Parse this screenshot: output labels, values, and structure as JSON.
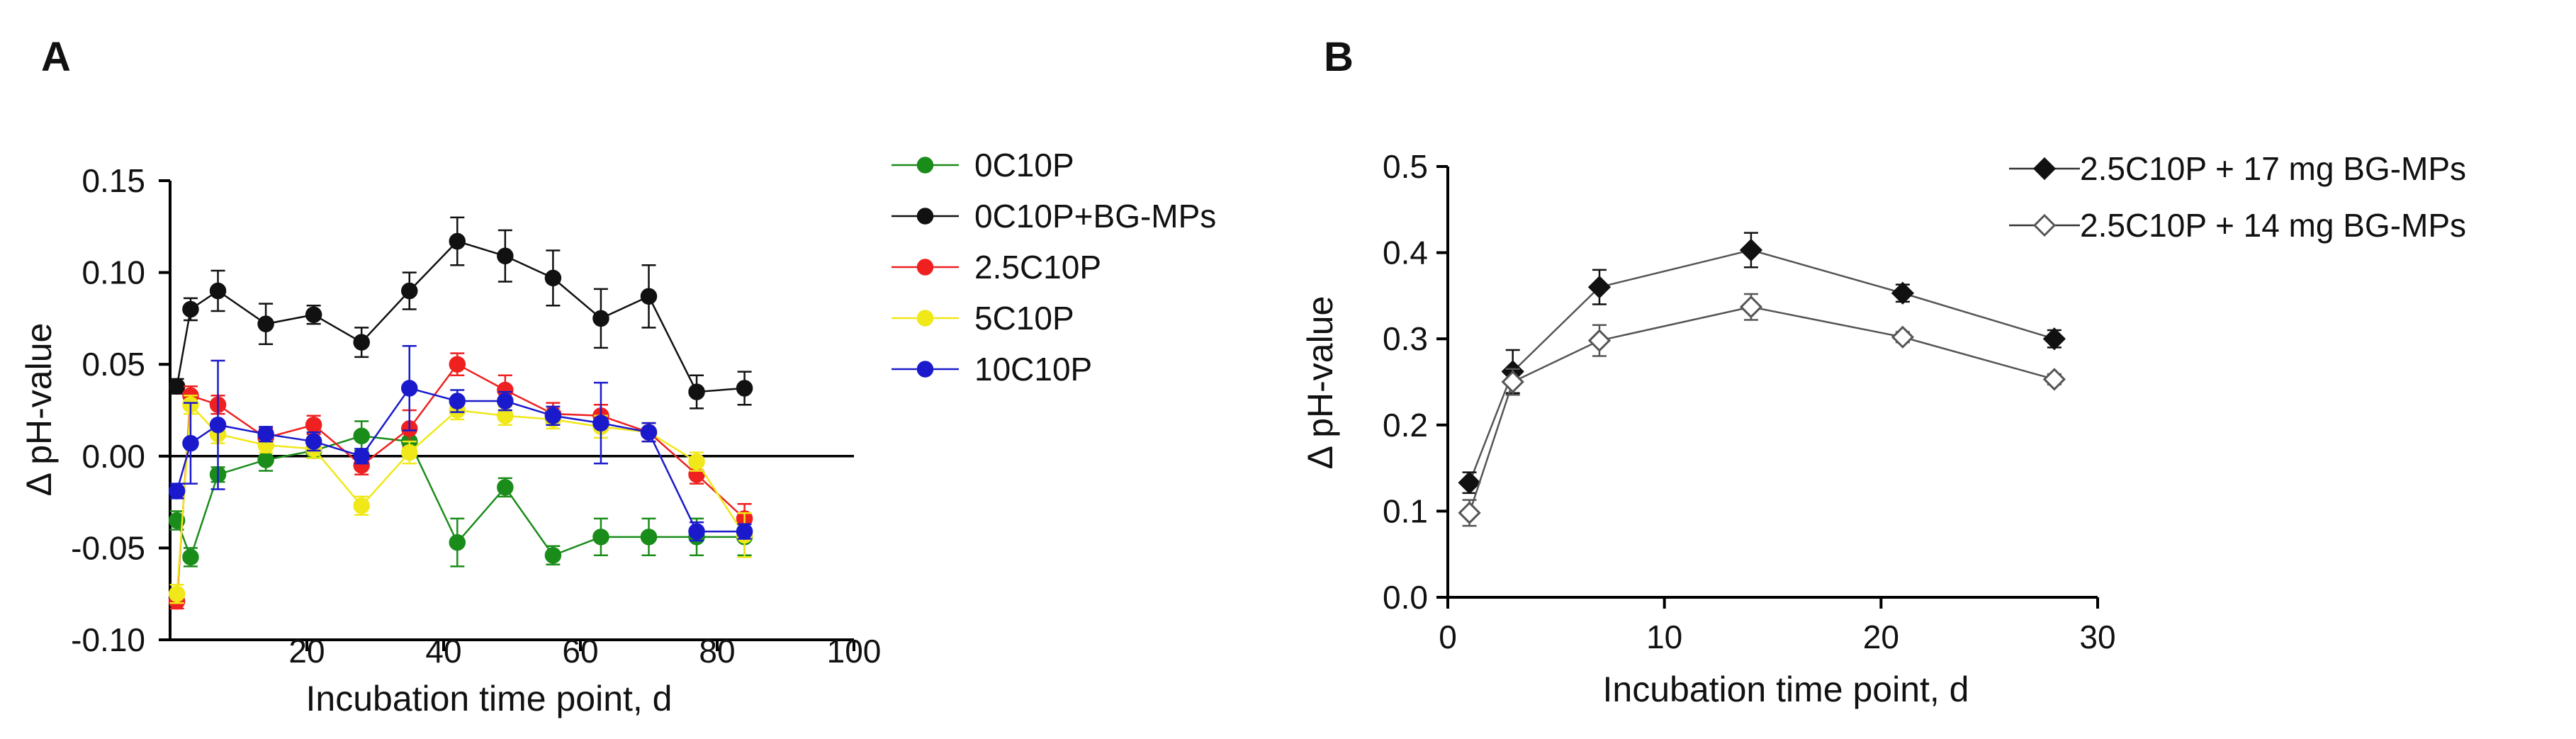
{
  "chart_data": [
    {
      "type": "line",
      "panel_label": "A",
      "xlabel": "Incubation time point, d",
      "ylabel": "Δ pH-value",
      "xlim": [
        0,
        100
      ],
      "ylim": [
        -0.1,
        0.15
      ],
      "xticks": [
        20,
        40,
        60,
        80,
        100
      ],
      "xtick_labels": [
        "20",
        "40",
        "60",
        "80",
        "100"
      ],
      "yticks": [
        -0.1,
        -0.05,
        0.0,
        0.05,
        0.1,
        0.15
      ],
      "ytick_labels": [
        "-0.10",
        "-0.05",
        "0.00",
        "0.05",
        "0.10",
        "0.15"
      ],
      "zero_line": true,
      "grid": false,
      "legend_position": "right",
      "series": [
        {
          "name": "0C10P",
          "color": "#1a8c1a",
          "marker": "circle",
          "filled": true,
          "x": [
            1,
            3,
            7,
            14,
            21,
            28,
            35,
            42,
            49,
            56,
            63,
            70,
            77,
            84
          ],
          "y": [
            -0.035,
            -0.055,
            -0.01,
            -0.002,
            0.003,
            0.011,
            0.008,
            -0.047,
            -0.017,
            -0.054,
            -0.044,
            -0.044,
            -0.044,
            -0.044
          ],
          "err": [
            0.005,
            0.005,
            0.004,
            0.006,
            0.004,
            0.008,
            0.005,
            0.013,
            0.005,
            0.005,
            0.01,
            0.01,
            0.01,
            0.01
          ]
        },
        {
          "name": "0C10P+BG-MPs",
          "color": "#111111",
          "marker": "circle",
          "filled": true,
          "x": [
            1,
            3,
            7,
            14,
            21,
            28,
            35,
            42,
            49,
            56,
            63,
            70,
            77,
            84
          ],
          "y": [
            0.038,
            0.08,
            0.09,
            0.072,
            0.077,
            0.062,
            0.09,
            0.117,
            0.109,
            0.097,
            0.075,
            0.087,
            0.035,
            0.037
          ],
          "err": [
            0.004,
            0.006,
            0.011,
            0.011,
            0.005,
            0.008,
            0.01,
            0.013,
            0.014,
            0.015,
            0.016,
            0.017,
            0.009,
            0.009
          ]
        },
        {
          "name": "2.5C10P",
          "color": "#ee2020",
          "marker": "circle",
          "filled": true,
          "x": [
            1,
            3,
            7,
            14,
            21,
            28,
            35,
            42,
            49,
            56,
            63,
            70,
            77,
            84
          ],
          "y": [
            -0.079,
            0.033,
            0.028,
            0.01,
            0.017,
            -0.005,
            0.015,
            0.05,
            0.036,
            0.023,
            0.022,
            0.013,
            -0.01,
            -0.034
          ],
          "err": [
            0.004,
            0.005,
            0.005,
            0.005,
            0.005,
            0.005,
            0.01,
            0.006,
            0.008,
            0.006,
            0.006,
            0.005,
            0.005,
            0.008
          ]
        },
        {
          "name": "5C10P",
          "color": "#f0e818",
          "marker": "circle",
          "filled": true,
          "x": [
            1,
            3,
            7,
            14,
            21,
            28,
            35,
            42,
            49,
            56,
            63,
            70,
            77,
            84
          ],
          "y": [
            -0.075,
            0.028,
            0.012,
            0.006,
            0.004,
            -0.027,
            0.002,
            0.025,
            0.022,
            0.02,
            0.016,
            0.013,
            -0.003,
            -0.043
          ],
          "err": [
            0.005,
            0.005,
            0.005,
            0.004,
            0.005,
            0.005,
            0.006,
            0.005,
            0.005,
            0.005,
            0.006,
            0.005,
            0.005,
            0.012
          ]
        },
        {
          "name": "10C10P",
          "color": "#1a1acc",
          "marker": "circle",
          "filled": true,
          "x": [
            1,
            3,
            7,
            14,
            21,
            28,
            35,
            42,
            49,
            56,
            63,
            70,
            77,
            84
          ],
          "y": [
            -0.019,
            0.007,
            0.017,
            0.012,
            0.008,
            0.0,
            0.037,
            0.03,
            0.03,
            0.022,
            0.018,
            0.013,
            -0.041,
            -0.041
          ],
          "err": [
            0.004,
            0.022,
            0.035,
            0.004,
            0.005,
            0.004,
            0.023,
            0.006,
            0.005,
            0.005,
            0.022,
            0.005,
            0.005,
            0.004
          ]
        }
      ]
    },
    {
      "type": "line",
      "panel_label": "B",
      "xlabel": "Incubation time point, d",
      "ylabel": "Δ pH-value",
      "xlim": [
        0,
        30
      ],
      "ylim": [
        0.0,
        0.5
      ],
      "xticks": [
        0,
        10,
        20,
        30
      ],
      "xtick_labels": [
        "0",
        "10",
        "20",
        "30"
      ],
      "yticks": [
        0.0,
        0.1,
        0.2,
        0.3,
        0.4,
        0.5
      ],
      "ytick_labels": [
        "0.0",
        "0.1",
        "0.2",
        "0.3",
        "0.4",
        "0.5"
      ],
      "grid": false,
      "legend_position": "top-right",
      "series": [
        {
          "name": "2.5C10P + 17 mg BG-MPs",
          "color": "#111111",
          "marker": "diamond",
          "filled": true,
          "x": [
            1,
            3,
            7,
            14,
            21,
            28
          ],
          "y": [
            0.133,
            0.262,
            0.36,
            0.403,
            0.353,
            0.3
          ],
          "err": [
            0.012,
            0.025,
            0.02,
            0.02,
            0.01,
            0.01
          ]
        },
        {
          "name": "2.5C10P + 14 mg BG-MPs",
          "color": "#555555",
          "marker": "diamond",
          "filled": false,
          "x": [
            1,
            3,
            7,
            14,
            21,
            28
          ],
          "y": [
            0.098,
            0.25,
            0.298,
            0.337,
            0.302,
            0.253
          ],
          "err": [
            0.015,
            0.015,
            0.018,
            0.015,
            0.006,
            0.006
          ]
        }
      ]
    }
  ]
}
